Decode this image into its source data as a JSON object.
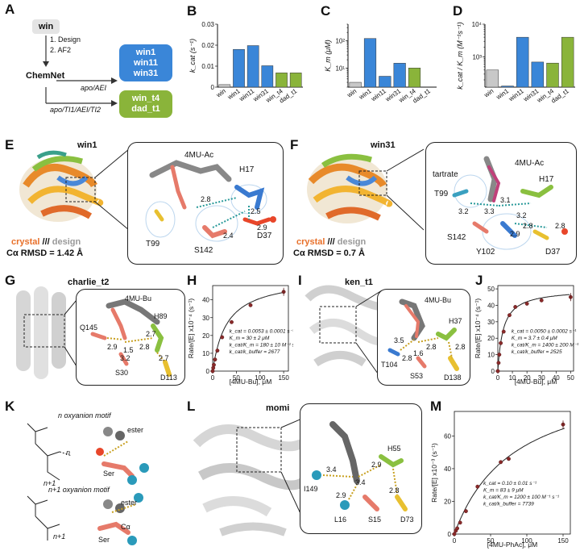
{
  "panelA": {
    "letter": "A",
    "win": "win",
    "step1": "1. Design",
    "step2": "2. AF2",
    "chemnet": "ChemNet",
    "cond1": "apo/AEI",
    "cond2": "apo/TI1/AEI/TI2",
    "blue_items": [
      "win1",
      "win11",
      "win31"
    ],
    "green_items": [
      "win_t4",
      "dad_t1"
    ]
  },
  "panelB": {
    "letter": "B"
  },
  "panelC": {
    "letter": "C"
  },
  "panelD": {
    "letter": "D"
  },
  "chart_data": [
    {
      "panel": "B",
      "type": "bar",
      "ylabel": "k_cat (s⁻¹)",
      "categories": [
        "win",
        "win1",
        "win11",
        "win31",
        "win_t4",
        "dad_t1"
      ],
      "values": [
        0.0012,
        0.018,
        0.0198,
        0.0102,
        0.0068,
        0.0068
      ],
      "colors": [
        "#c8c8c8",
        "#3a86d8",
        "#3a86d8",
        "#3a86d8",
        "#8ab43a",
        "#8ab43a"
      ],
      "ylim": [
        0,
        0.03
      ],
      "yticks": [
        "0",
        "0.01",
        "0.02",
        "0.03"
      ]
    },
    {
      "panel": "C",
      "type": "bar",
      "yscale": "log",
      "ylabel": "K_m (μM)",
      "categories": [
        "win",
        "win1",
        "win11",
        "win31",
        "win_t4",
        "dad_t1"
      ],
      "values": [
        3,
        120,
        5,
        15,
        10,
        2
      ],
      "colors": [
        "#c8c8c8",
        "#3a86d8",
        "#3a86d8",
        "#3a86d8",
        "#8ab43a",
        "#8ab43a"
      ],
      "ylim": [
        2,
        400
      ],
      "yticks": [
        "10¹",
        "10²"
      ]
    },
    {
      "panel": "D",
      "type": "bar",
      "yscale": "log",
      "ylabel": "k_cat / K_m (M⁻¹s⁻¹)",
      "categories": [
        "win",
        "win1",
        "win11",
        "win31",
        "win_t4",
        "dad_t1"
      ],
      "values": [
        400,
        130,
        4000,
        700,
        650,
        4000
      ],
      "colors": [
        "#c8c8c8",
        "#3a86d8",
        "#3a86d8",
        "#3a86d8",
        "#8ab43a",
        "#8ab43a"
      ],
      "ylim": [
        120,
        10000
      ],
      "yticks": [
        "10³",
        "10⁴"
      ]
    },
    {
      "panel": "H",
      "type": "scatter",
      "xlabel": "[4MU-Bu], μM",
      "ylabel": "Rate/[E] x10⁻⁴ (s⁻¹)",
      "x": [
        0,
        1.2,
        2.5,
        5,
        10,
        20,
        40,
        80,
        150
      ],
      "y": [
        0,
        1.8,
        3.5,
        6.5,
        11.5,
        19,
        27.5,
        37,
        44.5
      ],
      "fit": {
        "kcat": 0.0053,
        "Km": 30,
        "scale": 10000.0
      },
      "xlim": [
        0,
        160
      ],
      "ylim": [
        0,
        48
      ],
      "xticks": [
        0,
        50,
        100,
        150
      ],
      "yticks": [
        0,
        10,
        20,
        30,
        40
      ]
    },
    {
      "panel": "J",
      "type": "scatter",
      "xlabel": "[4MU-Bu], μM",
      "ylabel": "Rate/[E] x10⁻⁴ (s⁻¹)",
      "x": [
        0,
        0.5,
        1,
        2,
        4,
        8,
        12,
        20,
        30,
        50
      ],
      "y": [
        0,
        5,
        10,
        17,
        24,
        34,
        39,
        41,
        43,
        45
      ],
      "fit": {
        "kcat": 0.005,
        "Km": 3.7,
        "scale": 10000.0
      },
      "xlim": [
        0,
        52
      ],
      "ylim": [
        0,
        52
      ],
      "xticks": [
        0,
        10,
        20,
        30,
        40,
        50
      ],
      "yticks": [
        0,
        10,
        20,
        30,
        40,
        50
      ]
    },
    {
      "panel": "M",
      "type": "scatter",
      "xlabel": "[4MU-PhAc], μM",
      "ylabel": "Rate/[E] x10⁻³ (s⁻¹)",
      "x": [
        0,
        2,
        4,
        8,
        16,
        32,
        64,
        75,
        150
      ],
      "y": [
        0,
        2,
        3.5,
        7,
        14,
        29,
        44,
        46,
        67
      ],
      "fit": {
        "kcat": 0.1,
        "Km": 83,
        "scale": 1000.0
      },
      "xlim": [
        0,
        160
      ],
      "ylim": [
        0,
        75
      ],
      "xticks": [
        0,
        50,
        100,
        150
      ],
      "yticks": [
        0,
        20,
        40,
        60
      ]
    }
  ],
  "panelE": {
    "letter": "E",
    "title": "win1",
    "legend_crystal": "crystal",
    "legend_sep": "///",
    "legend_design": "design",
    "rmsd": "Cα RMSD = 1.42 Å",
    "labels": [
      "4MU-Ac",
      "H17",
      "T99",
      "S142",
      "D37"
    ],
    "distances": [
      "2.8",
      "2.5",
      "2.9",
      "2.4"
    ]
  },
  "panelF": {
    "letter": "F",
    "title": "win31",
    "legend_crystal": "crystal",
    "legend_sep": "///",
    "legend_design": "design",
    "rmsd": "Cα RMSD = 0.7 Å",
    "labels": [
      "4MU-Ac",
      "tartrate",
      "T99",
      "H17",
      "S142",
      "Y102",
      "D37"
    ],
    "distances": [
      "3.1",
      "3.3",
      "3.2",
      "3.2",
      "2.9",
      "2.8",
      "2.8"
    ]
  },
  "panelG": {
    "letter": "G",
    "title": "charlie_t2",
    "labels": [
      "4MU-Bu",
      "Q145",
      "H89",
      "S30",
      "D113"
    ],
    "distances": [
      "2.9",
      "1.5",
      "2.8",
      "2.7",
      "3.2",
      "2.7"
    ]
  },
  "panelH": {
    "letter": "H",
    "kinetics": [
      "k_cat = 0.0053 ± 0.0001 s⁻¹",
      "K_m = 30 ± 2 μM",
      "k_cat/K_m = 180 ± 10 M⁻¹ s⁻¹",
      "k_cat/k_buffer = 2677"
    ]
  },
  "panelI": {
    "letter": "I",
    "title": "ken_t1",
    "labels": [
      "4MU-Bu",
      "H37",
      "T104",
      "S53",
      "D138"
    ],
    "distances": [
      "3.5",
      "2.8",
      "2.8",
      "2.8",
      "1.6"
    ]
  },
  "panelJ": {
    "letter": "J",
    "kinetics": [
      "k_cat = 0.0050 ± 0.0002 s⁻¹",
      "K_m = 3.7 ± 0.4 μM",
      "k_cat/K_m = 1400 ± 200 M⁻¹ s⁻¹",
      "k_cat/k_buffer = 2525"
    ]
  },
  "panelK": {
    "letter": "K",
    "motif1": "n oxyanion motif",
    "motif2": "n+1 oxyanion motif",
    "labels": [
      "ester",
      "Ser",
      "n",
      "n+1",
      "Cα"
    ]
  },
  "panelL": {
    "letter": "L",
    "title": "momi",
    "labels": [
      "H55",
      "I149",
      "L16",
      "S15",
      "D73"
    ],
    "distances": [
      "3.4",
      "2.9",
      "2.9",
      "3.4",
      "2.8"
    ]
  },
  "panelM": {
    "letter": "M",
    "kinetics": [
      "k_cat = 0.10 ± 0.01 s⁻¹",
      "K_m = 83 ± 9 μM",
      "k_cat/K_m = 1200 ± 100 M⁻¹ s⁻¹",
      "k_cat/k_buffer = 7739"
    ]
  }
}
